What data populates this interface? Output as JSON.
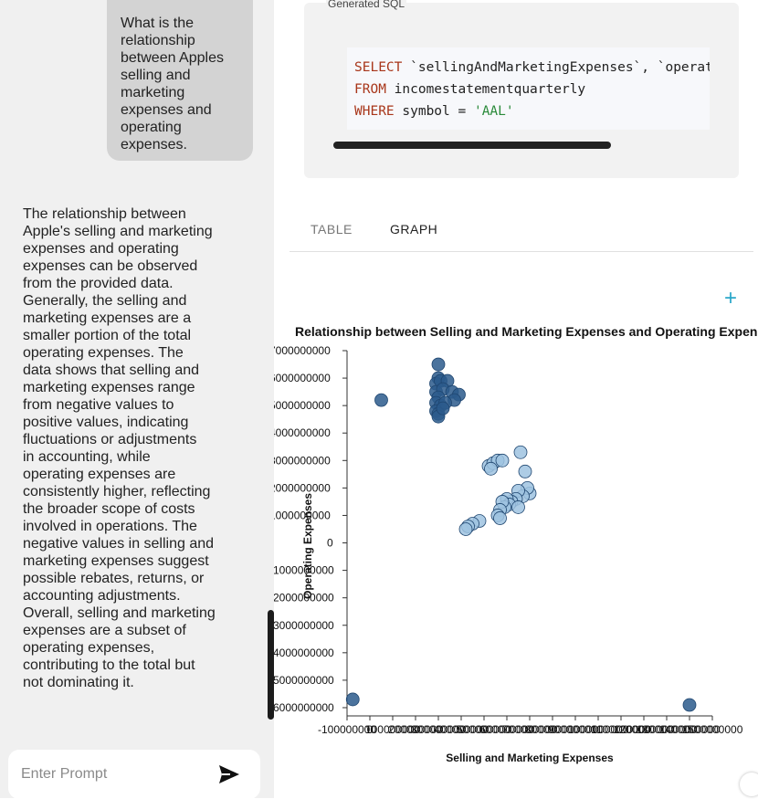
{
  "chat": {
    "user_message": "What is the relationship between Apples selling and marketing expenses and operating expenses.",
    "answer_lines": [
      "The relationship between",
      "Apple's selling and marketing",
      "expenses and operating",
      "expenses can be observed",
      "from the provided data.",
      "Generally, the selling and",
      "marketing expenses are a",
      "smaller portion of the total",
      "operating expenses. The",
      "data shows that selling and",
      "marketing expenses range",
      "from negative values to",
      "positive values, indicating",
      "fluctuations or adjustments",
      "in accounting, while",
      "operating expenses are",
      "consistently higher, reflecting",
      "the broader scope of costs",
      "involved in operations. The",
      "negative values in selling and",
      "marketing expenses suggest",
      "possible rebates, returns, or",
      "accounting adjustments.",
      "Overall, selling and marketing",
      "expenses are a subset of",
      "operating expenses,",
      "contributing to the total but",
      "not dominating it."
    ],
    "prompt_placeholder": "Enter Prompt",
    "send_icon": "send-icon"
  },
  "sql": {
    "label": "Generated SQL",
    "line1_kw": "SELECT",
    "line1_rest": " `sellingAndMarketingExpenses`, `operatingExpenses`",
    "line2_kw": "FROM",
    "line2_rest": " incomestatementquarterly",
    "line3_kw": "WHERE",
    "line3_rest": " symbol = ",
    "line3_str": "'AAL'"
  },
  "tabs": [
    {
      "label": "TABLE",
      "active": false
    },
    {
      "label": "GRAPH",
      "active": true
    }
  ],
  "colors": {
    "accent": "#2aa7c9",
    "point_dark": "#2c5b8c",
    "point_light": "#9fc3e0"
  },
  "chart_data": {
    "type": "scatter",
    "title": "Relationship between Selling and Marketing Expenses and Operating Expenses",
    "xlabel": "Selling and Marketing Expenses",
    "ylabel": "Operating Expenses",
    "y_ticks": [
      "7000000000",
      "6000000000",
      "5000000000",
      "4000000000",
      "3000000000",
      "2000000000",
      "1000000000",
      "0",
      "-1000000000",
      "-2000000000",
      "-3000000000",
      "-4000000000",
      "-5000000000",
      "-6000000000"
    ],
    "x_ticks": [
      "-100000000",
      "0",
      "100000000",
      "200000000",
      "300000000",
      "400000000",
      "500000000",
      "600000000",
      "700000000",
      "800000000",
      "900000000",
      "1000000000",
      "1100000000",
      "1200000000",
      "1300000000",
      "1400000000",
      "1500000000"
    ],
    "xlim": [
      -100000000,
      1500000000
    ],
    "ylim": [
      -6300000000,
      7000000000
    ],
    "points": [
      [
        -75000000,
        -5700000000
      ],
      [
        1400000000,
        -5900000000
      ],
      [
        50000000,
        5200000000
      ],
      [
        300000000,
        6500000000
      ],
      [
        300000000,
        6000000000
      ],
      [
        290000000,
        5800000000
      ],
      [
        310000000,
        5900000000
      ],
      [
        340000000,
        5900000000
      ],
      [
        290000000,
        5500000000
      ],
      [
        320000000,
        5600000000
      ],
      [
        360000000,
        5500000000
      ],
      [
        390000000,
        5400000000
      ],
      [
        370000000,
        5200000000
      ],
      [
        300000000,
        5300000000
      ],
      [
        290000000,
        5100000000
      ],
      [
        310000000,
        5000000000
      ],
      [
        330000000,
        5100000000
      ],
      [
        290000000,
        4800000000
      ],
      [
        300000000,
        4700000000
      ],
      [
        300000000,
        4600000000
      ],
      [
        320000000,
        4900000000
      ],
      [
        520000000,
        2800000000
      ],
      [
        540000000,
        2900000000
      ],
      [
        560000000,
        3000000000
      ],
      [
        580000000,
        3000000000
      ],
      [
        530000000,
        2700000000
      ],
      [
        660000000,
        3300000000
      ],
      [
        680000000,
        2600000000
      ],
      [
        700000000,
        1800000000
      ],
      [
        690000000,
        2000000000
      ],
      [
        670000000,
        1700000000
      ],
      [
        650000000,
        1900000000
      ],
      [
        640000000,
        1600000000
      ],
      [
        620000000,
        1500000000
      ],
      [
        600000000,
        1600000000
      ],
      [
        610000000,
        1400000000
      ],
      [
        590000000,
        1300000000
      ],
      [
        580000000,
        1500000000
      ],
      [
        570000000,
        1200000000
      ],
      [
        650000000,
        1300000000
      ],
      [
        560000000,
        1000000000
      ],
      [
        570000000,
        900000000
      ],
      [
        480000000,
        800000000
      ],
      [
        450000000,
        700000000
      ],
      [
        430000000,
        600000000
      ],
      [
        420000000,
        500000000
      ]
    ]
  }
}
